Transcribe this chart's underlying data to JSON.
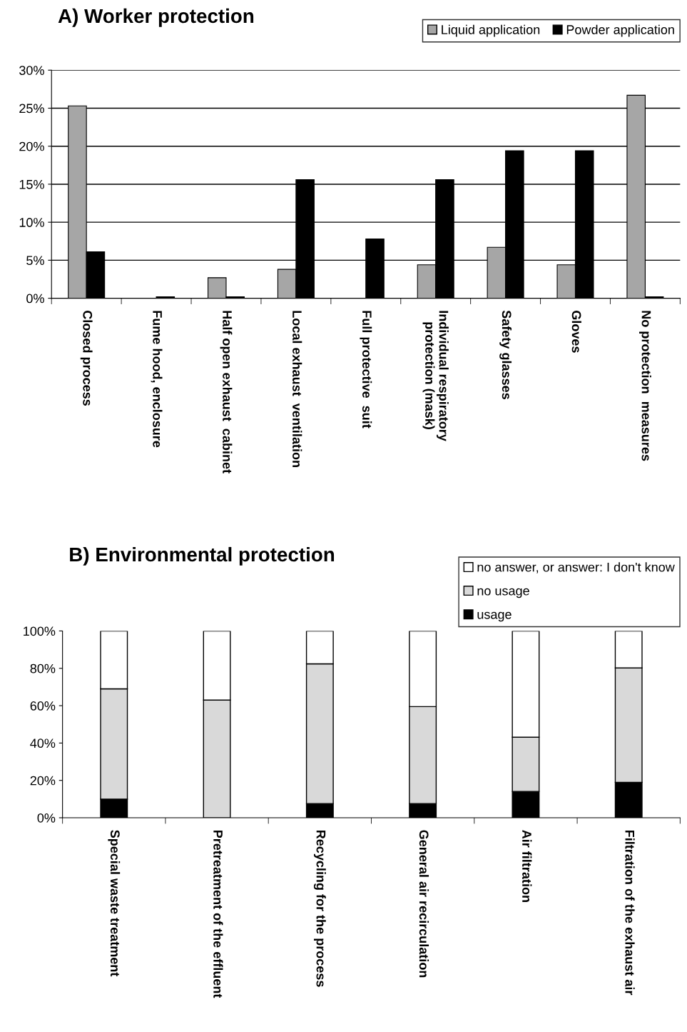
{
  "chart_data": [
    {
      "type": "bar",
      "title": "A) Worker protection",
      "categories": [
        "Closed process",
        "Fume hood, enclosure",
        "Half open exhaust  cabinet",
        "Local exhaust  ventilation",
        "Full protective  suit",
        "Individual respiratory\nprotection (mask)",
        "Safety glasses",
        "Gloves",
        "No protection  measures"
      ],
      "series": [
        {
          "name": "Liquid application",
          "color": "#a6a6a6",
          "values": [
            25.3,
            0,
            2.7,
            3.8,
            0,
            4.4,
            6.7,
            4.4,
            26.7
          ]
        },
        {
          "name": "Powder application",
          "color": "#000000",
          "values": [
            6.1,
            0.2,
            0.2,
            15.6,
            7.8,
            15.6,
            19.4,
            19.4,
            0.2
          ]
        }
      ],
      "ylim": [
        0,
        30
      ],
      "yticks": [
        {
          "value": 0,
          "label": "0%"
        },
        {
          "value": 5,
          "label": "5%"
        },
        {
          "value": 10,
          "label": "10%"
        },
        {
          "value": 15,
          "label": "15%"
        },
        {
          "value": 20,
          "label": "20%"
        },
        {
          "value": 25,
          "label": "25%"
        },
        {
          "value": 30,
          "label": "30%"
        }
      ],
      "grid": "y",
      "legend": "top right"
    },
    {
      "type": "bar",
      "title": "B) Environmental protection",
      "stacked": true,
      "categories": [
        "Special waste treatment",
        "Pretreatment of the effluent",
        "Recycling for the process",
        "General air recirculation",
        "Air filtration",
        "Filtration of the exhaust air"
      ],
      "series": [
        {
          "name": "usage",
          "color": "#000000",
          "values": [
            10,
            0,
            7.6,
            7.6,
            14.1,
            19
          ]
        },
        {
          "name": "no usage",
          "color": "#d9d9d9",
          "values": [
            59,
            63,
            74.8,
            51.9,
            29,
            61.2
          ]
        },
        {
          "name": "no answer, or answer: I don't know",
          "color": "#ffffff",
          "values": [
            31,
            37,
            17.6,
            40.5,
            56.9,
            19.8
          ]
        }
      ],
      "ylim": [
        0,
        100
      ],
      "yticks": [
        {
          "value": 0,
          "label": "0%"
        },
        {
          "value": 20,
          "label": "20%"
        },
        {
          "value": 40,
          "label": "40%"
        },
        {
          "value": 60,
          "label": "60%"
        },
        {
          "value": 80,
          "label": "80%"
        },
        {
          "value": 100,
          "label": "100%"
        }
      ],
      "legend": "top right"
    }
  ]
}
